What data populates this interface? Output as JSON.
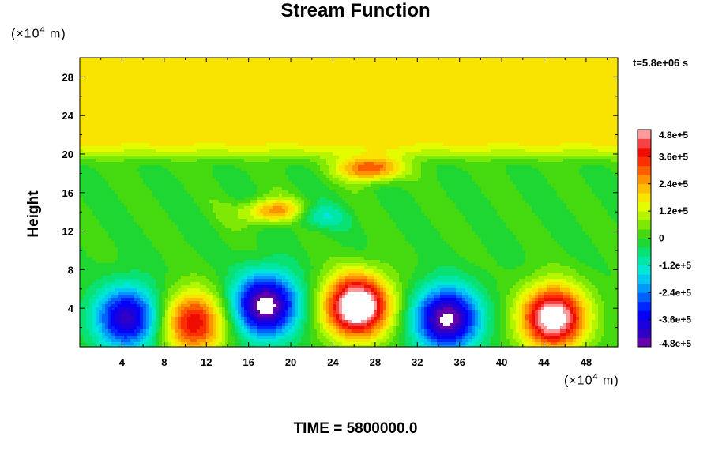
{
  "chart_data": {
    "type": "heatmap",
    "title": "Stream Function",
    "ylabel": "Height",
    "xlabel": "",
    "x_unit": {
      "prefix": "(×10",
      "exp": "4",
      "suffix": " m)"
    },
    "y_unit": {
      "prefix": "(×10",
      "exp": "4",
      "suffix": " m)"
    },
    "time_label": "t=5.8e+06 s",
    "footer": "TIME = 5800000.0",
    "xlim": [
      0,
      51
    ],
    "ylim": [
      0,
      30
    ],
    "x_ticks": [
      4,
      8,
      12,
      16,
      20,
      24,
      28,
      32,
      36,
      40,
      44,
      48
    ],
    "y_ticks": [
      4,
      8,
      12,
      16,
      20,
      24,
      28
    ],
    "colorbar": {
      "min": -480000,
      "max": 480000,
      "tick_values": [
        480000,
        360000,
        240000,
        120000,
        0,
        -120000,
        -240000,
        -360000,
        -480000
      ],
      "tick_labels": [
        "4.8e+5",
        "3.6e+5",
        "2.4e+5",
        "1.2e+5",
        "0",
        "-1.2e+5",
        "-2.4e+5",
        "-3.6e+5",
        "-4.8e+5"
      ]
    },
    "field_features": [
      {
        "kind": "vortex",
        "sign": "negative",
        "x": 4.5,
        "y": 3.0,
        "peak": -420000
      },
      {
        "kind": "vortex",
        "sign": "positive",
        "x": 10.8,
        "y": 2.5,
        "peak": 400000
      },
      {
        "kind": "vortex",
        "sign": "negative",
        "x": 17.6,
        "y": 4.3,
        "peak": -520000
      },
      {
        "kind": "vortex",
        "sign": "positive",
        "x": 26.3,
        "y": 4.2,
        "peak": 620000
      },
      {
        "kind": "vortex",
        "sign": "negative",
        "x": 34.8,
        "y": 2.9,
        "peak": -500000
      },
      {
        "kind": "vortex",
        "sign": "positive",
        "x": 44.9,
        "y": 3.0,
        "peak": 560000
      },
      {
        "kind": "band",
        "y_from": 20,
        "y_to": 30,
        "value": 180000
      },
      {
        "kind": "patch",
        "x": 18.5,
        "y": 14.0,
        "peak": 300000
      },
      {
        "kind": "patch",
        "x": 27.5,
        "y": 18.5,
        "peak": 330000
      },
      {
        "kind": "patch",
        "x": 21.8,
        "y": 13.5,
        "peak": -150000
      }
    ]
  }
}
